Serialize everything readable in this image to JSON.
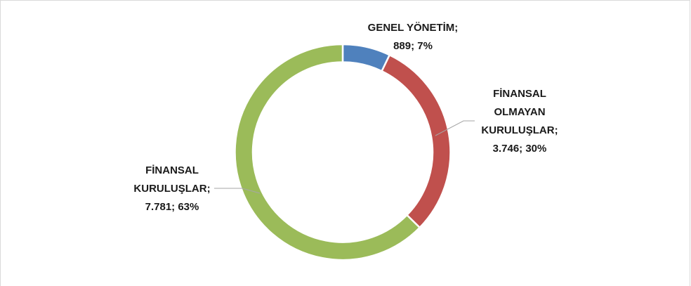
{
  "chart_data": {
    "type": "donut",
    "categories": [
      "GENEL YÖNETİM;",
      "FİNANSAL OLMAYAN KURULUŞLAR;",
      "FİNANSAL KURULUŞLAR;"
    ],
    "values": [
      889,
      3746,
      7781
    ],
    "value_labels": [
      "889; 7%",
      "3.746; 30%",
      "7.781; 63%"
    ],
    "colors": [
      "#4f81bd",
      "#c0504d",
      "#9bbb59"
    ]
  }
}
